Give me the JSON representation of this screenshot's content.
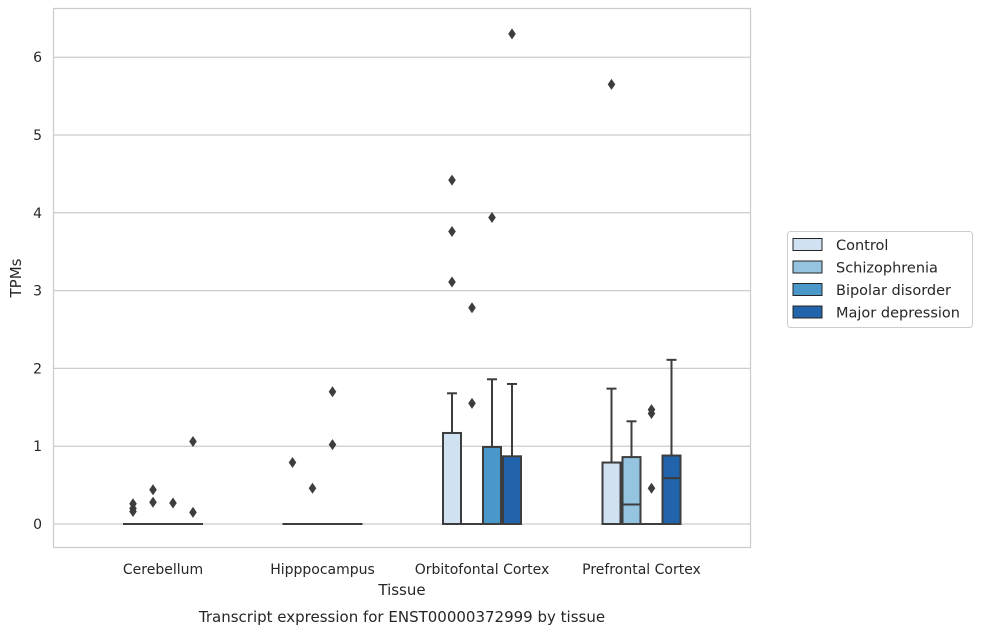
{
  "chart_data": {
    "type": "box",
    "caption": "Transcript expression for ENST00000372999 by tissue",
    "xlabel": "Tissue",
    "ylabel": "TPMs",
    "ylim": [
      -0.31,
      6.55
    ],
    "yticks": [
      0,
      1,
      2,
      3,
      4,
      5,
      6
    ],
    "grid": true,
    "legend_position": "right",
    "categories": [
      "Cerebellum",
      "Hipppocampus",
      "Orbitofontal Cortex",
      "Prefrontal Cortex"
    ],
    "series": [
      {
        "name": "Control",
        "color": "#d0e1f2",
        "boxes": [
          {
            "q1": 0,
            "median": 0,
            "q3": 0,
            "whislo": 0,
            "whishi": 0,
            "fliers": [
              0.16,
              0.2,
              0.26
            ]
          },
          {
            "q1": 0,
            "median": 0,
            "q3": 0,
            "whislo": 0,
            "whishi": 0,
            "fliers": [
              0.79
            ]
          },
          {
            "q1": 0,
            "median": 0,
            "q3": 1.17,
            "whislo": 0,
            "whishi": 1.68,
            "fliers": [
              3.11,
              3.76,
              4.42
            ]
          },
          {
            "q1": 0,
            "median": 0,
            "q3": 0.79,
            "whislo": 0,
            "whishi": 1.74,
            "fliers": [
              5.65
            ]
          }
        ]
      },
      {
        "name": "Schizophrenia",
        "color": "#94c4df",
        "boxes": [
          {
            "q1": 0,
            "median": 0,
            "q3": 0,
            "whislo": 0,
            "whishi": 0,
            "fliers": [
              0.28,
              0.44
            ]
          },
          {
            "q1": 0,
            "median": 0,
            "q3": 0,
            "whislo": 0,
            "whishi": 0,
            "fliers": [
              0.46
            ]
          },
          {
            "q1": 0,
            "median": 0,
            "q3": 0,
            "whislo": 0,
            "whishi": 0,
            "fliers": [
              1.55,
              2.78
            ]
          },
          {
            "q1": 0,
            "median": 0.25,
            "q3": 0.86,
            "whislo": 0,
            "whishi": 1.32,
            "fliers": []
          }
        ]
      },
      {
        "name": "Bipolar disorder",
        "color": "#4a98c9",
        "boxes": [
          {
            "q1": 0,
            "median": 0,
            "q3": 0,
            "whislo": 0,
            "whishi": 0,
            "fliers": [
              0.27
            ]
          },
          {
            "q1": 0,
            "median": 0,
            "q3": 0,
            "whislo": 0,
            "whishi": 0,
            "fliers": [
              1.02,
              1.7
            ]
          },
          {
            "q1": 0,
            "median": 0,
            "q3": 0.99,
            "whislo": 0,
            "whishi": 1.86,
            "fliers": [
              3.94
            ]
          },
          {
            "q1": 0,
            "median": 0,
            "q3": 0,
            "whislo": 0,
            "whishi": 0,
            "fliers": [
              0.46,
              1.42,
              1.47
            ]
          }
        ]
      },
      {
        "name": "Major depression",
        "color": "#2164ab",
        "boxes": [
          {
            "q1": 0,
            "median": 0,
            "q3": 0,
            "whislo": 0,
            "whishi": 0,
            "fliers": [
              0.15,
              1.06
            ]
          },
          {
            "q1": 0,
            "median": 0,
            "q3": 0,
            "whislo": 0,
            "whishi": 0,
            "fliers": []
          },
          {
            "q1": 0,
            "median": 0,
            "q3": 0.87,
            "whislo": 0,
            "whishi": 1.8,
            "fliers": [
              6.3
            ]
          },
          {
            "q1": 0,
            "median": 0.59,
            "q3": 0.88,
            "whislo": 0,
            "whishi": 2.11,
            "fliers": []
          }
        ]
      }
    ]
  }
}
